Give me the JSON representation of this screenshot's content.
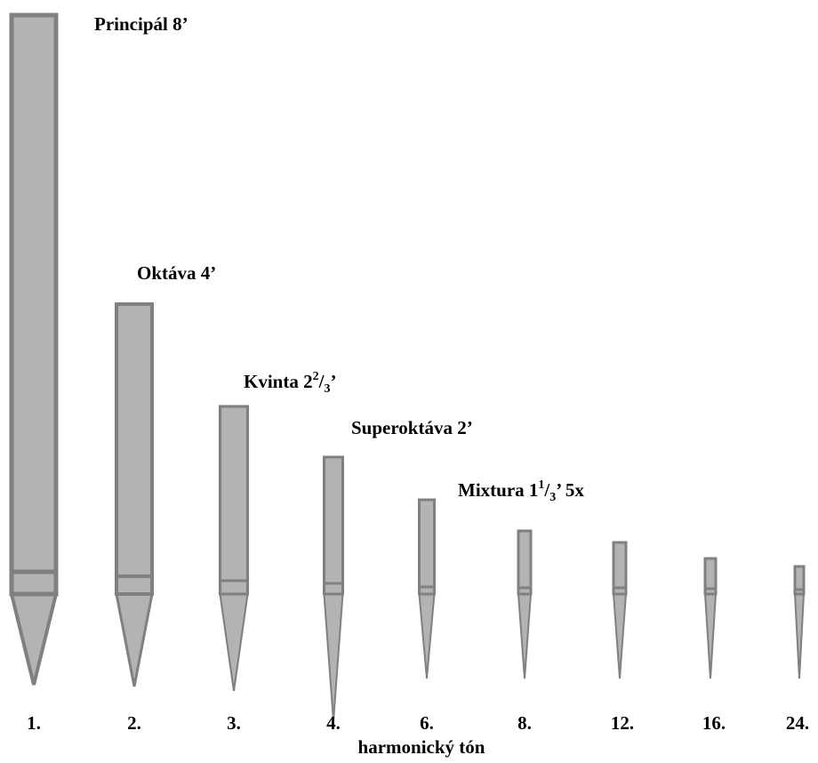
{
  "title": "",
  "axis_title": "harmonický tón",
  "colors": {
    "pipe_fill": "#b3b3b3",
    "pipe_stroke": "#808080",
    "text": "#000000"
  },
  "pipes": [
    {
      "harmonic": "1.",
      "label": {
        "main": "Principál",
        "size": "8",
        "sup": "",
        "sub": "",
        "tail": "’"
      }
    },
    {
      "harmonic": "2.",
      "label": {
        "main": "Oktáva",
        "size": "4",
        "sup": "",
        "sub": "",
        "tail": "’"
      }
    },
    {
      "harmonic": "3.",
      "label": {
        "main": "Kvinta",
        "size": "2",
        "sup": "2",
        "sub": "3",
        "tail": "’"
      }
    },
    {
      "harmonic": "4.",
      "label": {
        "main": "Superoktáva",
        "size": "2",
        "sup": "",
        "sub": "",
        "tail": "’"
      }
    },
    {
      "harmonic": "6.",
      "label": {
        "main": "Mixtura",
        "size": "1",
        "sup": "1",
        "sub": "3",
        "tail": "’  5x"
      }
    },
    {
      "harmonic": "8.",
      "label": null
    },
    {
      "harmonic": "12.",
      "label": null
    },
    {
      "harmonic": "16.",
      "label": null
    },
    {
      "harmonic": "24.",
      "label": null
    }
  ]
}
